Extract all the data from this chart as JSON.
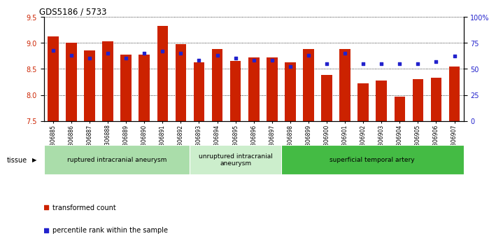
{
  "title": "GDS5186 / 5733",
  "samples": [
    "GSM1306885",
    "GSM1306886",
    "GSM1306887",
    "GSM1306888",
    "GSM1306889",
    "GSM1306890",
    "GSM1306891",
    "GSM1306892",
    "GSM1306893",
    "GSM1306894",
    "GSM1306895",
    "GSM1306896",
    "GSM1306897",
    "GSM1306898",
    "GSM1306899",
    "GSM1306900",
    "GSM1306901",
    "GSM1306902",
    "GSM1306903",
    "GSM1306904",
    "GSM1306905",
    "GSM1306906",
    "GSM1306907"
  ],
  "bar_values": [
    9.12,
    9.0,
    8.85,
    9.03,
    8.78,
    8.77,
    9.33,
    8.97,
    8.62,
    8.88,
    8.65,
    8.72,
    8.72,
    8.63,
    8.88,
    8.38,
    8.88,
    8.22,
    8.28,
    7.97,
    8.3,
    8.33,
    8.55
  ],
  "percentile_values": [
    68,
    63,
    60,
    65,
    60,
    65,
    67,
    65,
    58,
    63,
    60,
    58,
    58,
    52,
    63,
    55,
    65,
    55,
    55,
    55,
    55,
    57,
    62
  ],
  "ylim_left": [
    7.5,
    9.5
  ],
  "ylim_right": [
    0,
    100
  ],
  "yticks_left": [
    7.5,
    8.0,
    8.5,
    9.0,
    9.5
  ],
  "yticks_right": [
    0,
    25,
    50,
    75,
    100
  ],
  "yticklabels_right": [
    "0",
    "25",
    "50",
    "75",
    "100%"
  ],
  "bar_color": "#cc2200",
  "dot_color": "#2222cc",
  "tissue_groups": [
    {
      "label": "ruptured intracranial aneurysm",
      "start": 0,
      "end": 8,
      "color": "#aaddaa"
    },
    {
      "label": "unruptured intracranial\naneurysm",
      "start": 8,
      "end": 13,
      "color": "#cceecc"
    },
    {
      "label": "superficial temporal artery",
      "start": 13,
      "end": 23,
      "color": "#44bb44"
    }
  ]
}
